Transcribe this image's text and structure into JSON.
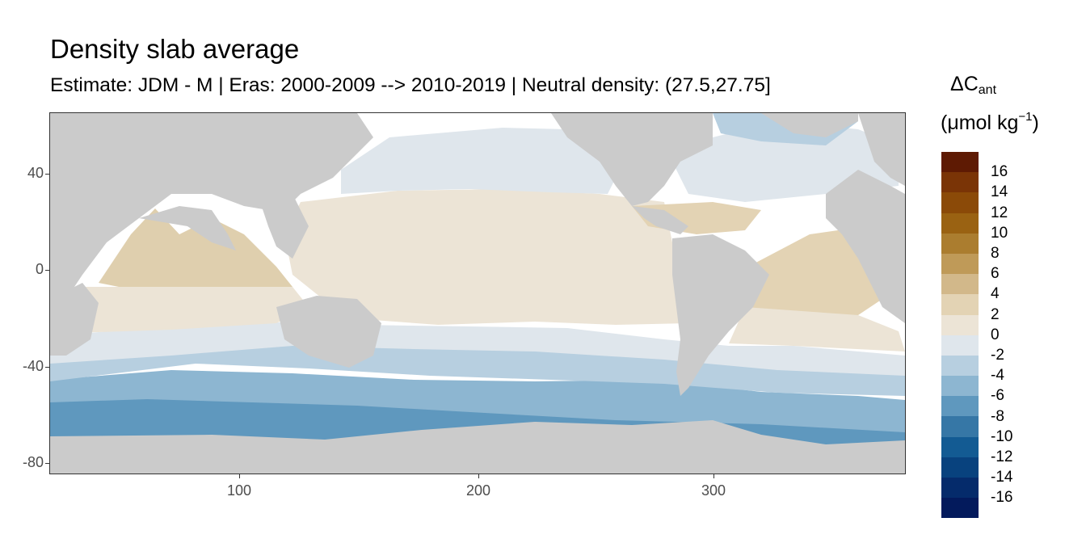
{
  "header": {
    "title": "Density slab average",
    "subtitle": "Estimate: JDM - M | Eras: 2000-2009 --> 2010-2019 | Neutral density: (27.5,27.75]"
  },
  "axes": {
    "x_ticks": [
      "100",
      "200",
      "300"
    ],
    "y_ticks": [
      "40",
      "0",
      "-40",
      "-80"
    ]
  },
  "legend": {
    "title_main": "ΔC",
    "title_sub": "ant",
    "unit_prefix": "(μmol kg",
    "unit_sup": "−1",
    "unit_suffix": ")",
    "labels": [
      "16",
      "14",
      "12",
      "10",
      "8",
      "6",
      "4",
      "2",
      "0",
      "-2",
      "-4",
      "-6",
      "-8",
      "-10",
      "-12",
      "-14",
      "-16"
    ],
    "colors": [
      "#5e1a03",
      "#7a3406",
      "#8b4a08",
      "#9a6212",
      "#ab7d2f",
      "#bf9a58",
      "#d2b88a",
      "#e3d3b4",
      "#ece4d6",
      "#dfe6ec",
      "#b7cfe0",
      "#8db6d1",
      "#5f98be",
      "#3677a6",
      "#135b93",
      "#08427e",
      "#052b6b",
      "#031a5c"
    ]
  },
  "colors": {
    "land": "#cbcbcb",
    "ocean_nodata": "#ffffff",
    "positive_low": "#ece4d6",
    "positive_mid": "#e3d3b4",
    "indian_positive": "#dfcfae",
    "neutral_neg": "#dfe6ec",
    "neg_low": "#b7cfe0",
    "neg_mid": "#8db6d1",
    "neg_strong": "#5f98be"
  }
}
